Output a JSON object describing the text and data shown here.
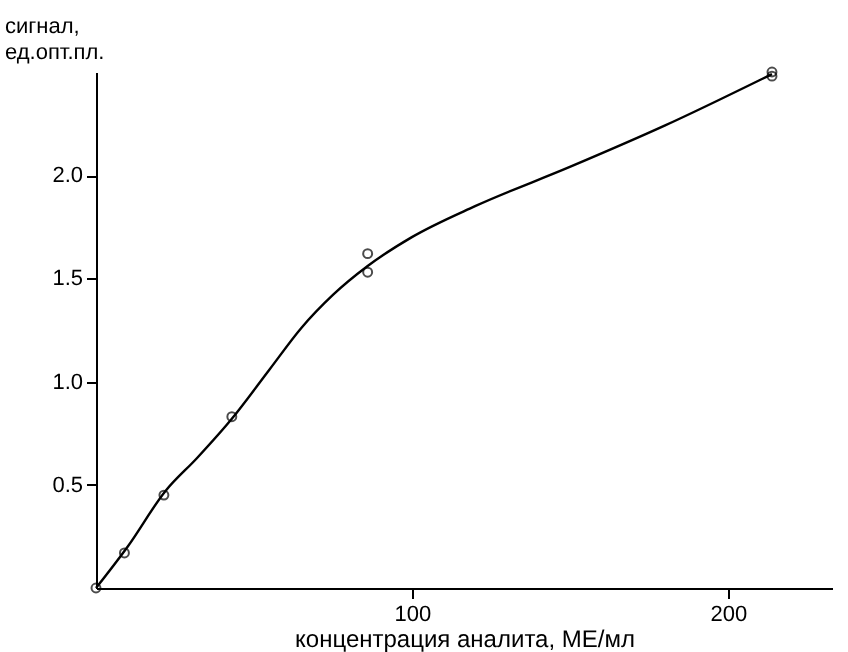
{
  "chart_data": {
    "type": "scatter",
    "xlabel": "концентрация  аналита, МЕ/мл",
    "ylabel": "сигнал,\nед.опт.пл.",
    "xlim": [
      0,
      233
    ],
    "xticks": [
      100,
      200
    ],
    "ylim": [
      0,
      2.5
    ],
    "yticks": [
      0.5,
      {
        "value": 1,
        "label": "1.0"
      },
      1.5,
      {
        "value": 2,
        "label": "2.0"
      }
    ],
    "grid": false,
    "series": [
      {
        "marker": "circle",
        "color": "#000000",
        "x": [
          0,
          9,
          21.5,
          43,
          86,
          86,
          214,
          214
        ],
        "values": [
          0,
          0.17,
          0.45,
          0.83,
          1.62,
          1.53,
          2.48,
          2.5
        ]
      },
      {
        "type": "line",
        "marker": "none",
        "line_style": "solid",
        "color": "#000000",
        "x": [
          0,
          10,
          22,
          32,
          43,
          55,
          65,
          75,
          86,
          100,
          120,
          150,
          180,
          214
        ],
        "values": [
          0,
          0.2,
          0.47,
          0.63,
          0.82,
          1.06,
          1.26,
          1.42,
          1.56,
          1.7,
          1.85,
          2.04,
          2.24,
          2.49
        ]
      }
    ]
  }
}
